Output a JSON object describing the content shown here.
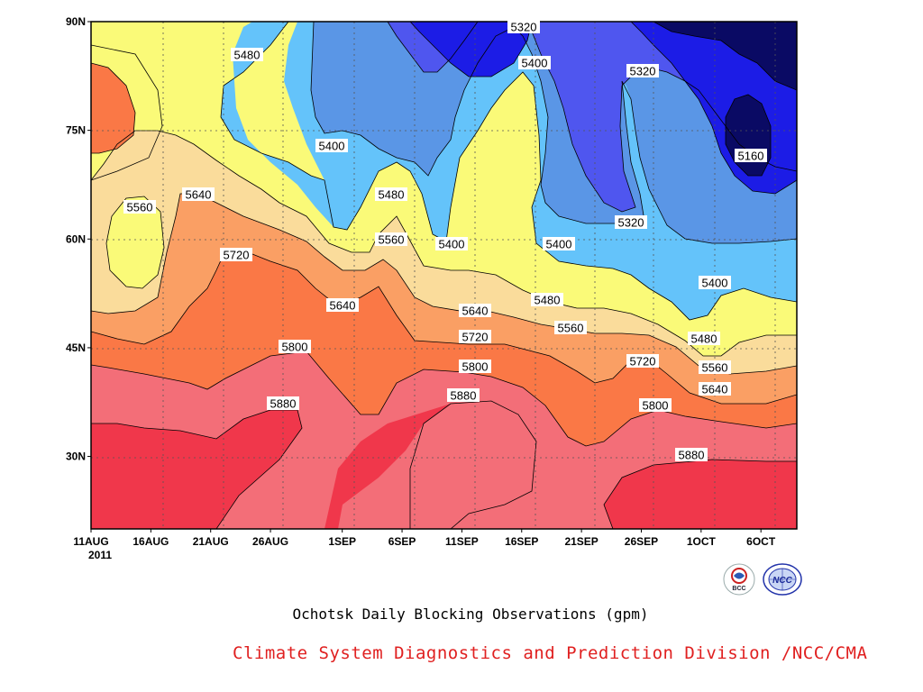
{
  "chart_data": {
    "type": "contour",
    "title": "Ochotsk Daily Blocking Observations (gpm)",
    "year_label": "2011",
    "x_ticks": [
      "11AUG",
      "16AUG",
      "21AUG",
      "26AUG",
      "1SEP",
      "6SEP",
      "11SEP",
      "16SEP",
      "21SEP",
      "26SEP",
      "1OCT",
      "6OCT"
    ],
    "x_tick_display": [
      "11AUG",
      "16AUG",
      "21AUG",
      "26AUG",
      "1SEP",
      "6SEP",
      "11SEP",
      "16SEP",
      "21SEP",
      "26SEP",
      "1OCT",
      "6OCT"
    ],
    "y_ticks": [
      "30N",
      "45N",
      "60N",
      "75N",
      "90N"
    ],
    "y_tick_values": [
      30,
      45,
      60,
      75,
      90
    ],
    "ylim": [
      20,
      90
    ],
    "contour_interval": 80,
    "contour_levels": [
      5160,
      5240,
      5320,
      5400,
      5480,
      5560,
      5640,
      5720,
      5800,
      5880
    ],
    "fill_colors": {
      "<5160": "#0a0a64",
      "5160-5240": "#1c1ce6",
      "5240-5320": "#4f56ef",
      "5320-5400": "#5a96e6",
      "5400-5480": "#64c3fa",
      "5480-5560": "#fafa78",
      "5560-5640": "#fadc9b",
      "5640-5720": "#fa9f64",
      "5720-5800": "#fa7846",
      "5800-5880": "#f36e78",
      ">5880": "#f0374b"
    },
    "contour_labels": [
      {
        "text": "5320"
      },
      {
        "text": "5400"
      },
      {
        "text": "5320"
      },
      {
        "text": "5480"
      },
      {
        "text": "5400"
      },
      {
        "text": "5160"
      },
      {
        "text": "5560"
      },
      {
        "text": "5640"
      },
      {
        "text": "5480"
      },
      {
        "text": "5320"
      },
      {
        "text": "5560"
      },
      {
        "text": "5400"
      },
      {
        "text": "5400"
      },
      {
        "text": "5720"
      },
      {
        "text": "5640"
      },
      {
        "text": "5480"
      },
      {
        "text": "5400"
      },
      {
        "text": "5640"
      },
      {
        "text": "5560"
      },
      {
        "text": "5720"
      },
      {
        "text": "5480"
      },
      {
        "text": "5800"
      },
      {
        "text": "5720"
      },
      {
        "text": "5560"
      },
      {
        "text": "5800"
      },
      {
        "text": "5640"
      },
      {
        "text": "5880"
      },
      {
        "text": "5880"
      },
      {
        "text": "5800"
      },
      {
        "text": "5880"
      }
    ]
  },
  "footer": {
    "credit": "Climate System Diagnostics and Prediction Division /NCC/CMA"
  },
  "logos": {
    "bcc_text": "BCC",
    "ncc_text": "NCC"
  }
}
